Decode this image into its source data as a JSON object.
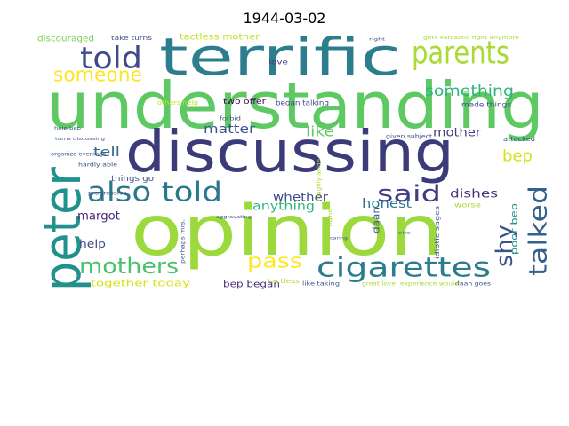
{
  "chart_data": {
    "type": "wordcloud",
    "title": "1944-03-02",
    "background": "#ffffff",
    "palette": [
      "#440154",
      "#3b528b",
      "#21918c",
      "#5ec962",
      "#9bd93c",
      "#fde725"
    ],
    "words": [
      {
        "text": "understanding",
        "weight": 100,
        "color": "#5ec962"
      },
      {
        "text": "opinion",
        "weight": 96,
        "color": "#9bd93c"
      },
      {
        "text": "discussing",
        "weight": 80,
        "color": "#3b3b7a"
      },
      {
        "text": "terrific",
        "weight": 72,
        "color": "#2c7e8e"
      },
      {
        "text": "peter",
        "weight": 66,
        "color": "#21918c"
      },
      {
        "text": "parents",
        "weight": 44,
        "color": "#a8db34"
      },
      {
        "text": "told",
        "weight": 40,
        "color": "#3e4a89"
      },
      {
        "text": "also told",
        "weight": 38,
        "color": "#2a788e"
      },
      {
        "text": "cigarettes",
        "weight": 36,
        "color": "#2b7c8c"
      },
      {
        "text": "talked",
        "weight": 34,
        "color": "#35608d"
      },
      {
        "text": "said",
        "weight": 30,
        "color": "#443983"
      },
      {
        "text": "mothers",
        "weight": 30,
        "color": "#4ac16d"
      },
      {
        "text": "shy",
        "weight": 28,
        "color": "#3b528b"
      },
      {
        "text": "someone",
        "weight": 26,
        "color": "#fde725"
      },
      {
        "text": "pass",
        "weight": 26,
        "color": "#fde725"
      },
      {
        "text": "something",
        "weight": 20,
        "color": "#2fb47c"
      },
      {
        "text": "bep",
        "weight": 20,
        "color": "#d5e21a"
      },
      {
        "text": "like",
        "weight": 18,
        "color": "#5ec962"
      },
      {
        "text": "honest",
        "weight": 16,
        "color": "#2a788e"
      },
      {
        "text": "tell",
        "weight": 16,
        "color": "#31688e"
      },
      {
        "text": "matter",
        "weight": 16,
        "color": "#3b528b"
      },
      {
        "text": "anything",
        "weight": 16,
        "color": "#2fb47c"
      },
      {
        "text": "whether",
        "weight": 15,
        "color": "#3e4a89"
      },
      {
        "text": "dishes",
        "weight": 15,
        "color": "#46327e"
      },
      {
        "text": "mother",
        "weight": 14,
        "color": "#433e85"
      },
      {
        "text": "margot",
        "weight": 14,
        "color": "#482878"
      },
      {
        "text": "help",
        "weight": 14,
        "color": "#3e4a89"
      },
      {
        "text": "daan",
        "weight": 12,
        "color": "#3b528b"
      },
      {
        "text": "bep began",
        "weight": 11,
        "color": "#472d7b"
      },
      {
        "text": "together today",
        "weight": 11,
        "color": "#d5e21a"
      },
      {
        "text": "poor bep",
        "weight": 10,
        "color": "#228c8d"
      },
      {
        "text": "tactless mother",
        "weight": 10,
        "color": "#c2df23"
      },
      {
        "text": "discouraged",
        "weight": 9,
        "color": "#7ad151"
      },
      {
        "text": "take turns",
        "weight": 7,
        "color": "#3b528b"
      },
      {
        "text": "two offer",
        "weight": 8,
        "color": "#440154"
      },
      {
        "text": "love",
        "weight": 8,
        "color": "#443983"
      },
      {
        "text": "began talking",
        "weight": 8,
        "color": "#3e4a89"
      },
      {
        "text": "made things",
        "weight": 8,
        "color": "#3b528b"
      },
      {
        "text": "others help",
        "weight": 7,
        "color": "#c2df23"
      },
      {
        "text": "things go",
        "weight": 8,
        "color": "#3b528b"
      },
      {
        "text": "attacked",
        "weight": 7,
        "color": "#3b528b"
      },
      {
        "text": "worse",
        "weight": 8,
        "color": "#a8db34"
      },
      {
        "text": "forbid",
        "weight": 6,
        "color": "#3b528b"
      },
      {
        "text": "given subject",
        "weight": 6,
        "color": "#3b528b"
      },
      {
        "text": "idiotic sages",
        "weight": 7,
        "color": "#3b528b"
      },
      {
        "text": "tactless",
        "weight": 7,
        "color": "#a8db34"
      },
      {
        "text": "daan goes",
        "weight": 6,
        "color": "#3b528b"
      },
      {
        "text": "like taking",
        "weight": 6,
        "color": "#3b528b"
      },
      {
        "text": "great love",
        "weight": 6,
        "color": "#a8db34"
      },
      {
        "text": "experience would",
        "weight": 6,
        "color": "#a8db34"
      },
      {
        "text": "gets sarcastic fight anymore",
        "weight": 5,
        "color": "#a8db34"
      },
      {
        "text": "organize evenings",
        "weight": 6,
        "color": "#3b528b"
      },
      {
        "text": "hardly able",
        "weight": 6,
        "color": "#3b528b"
      },
      {
        "text": "progressive",
        "weight": 6,
        "color": "#3b528b"
      },
      {
        "text": "help bep",
        "weight": 5,
        "color": "#3b528b"
      },
      {
        "text": "turns discussing",
        "weight": 5,
        "color": "#3b528b"
      },
      {
        "text": "perhaps mrs.",
        "weight": 6,
        "color": "#3b528b"
      },
      {
        "text": "aggravating",
        "weight": 5,
        "color": "#3b528b"
      },
      {
        "text": "roughly aside",
        "weight": 6,
        "color": "#a8db34"
      },
      {
        "text": "fight",
        "weight": 5,
        "color": "#a8db34"
      },
      {
        "text": "sits",
        "weight": 4,
        "color": "#3b528b"
      },
      {
        "text": "caring",
        "weight": 4,
        "color": "#3b528b"
      },
      {
        "text": "right",
        "weight": 4,
        "color": "#3b528b"
      }
    ]
  }
}
